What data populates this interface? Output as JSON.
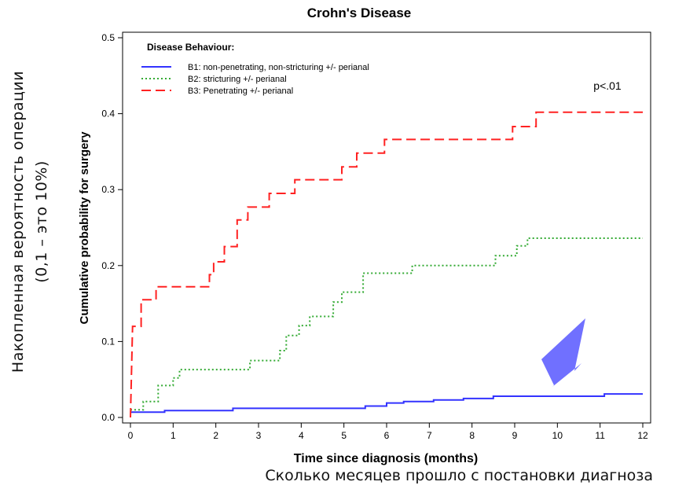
{
  "annotations": {
    "ru_ylabel_line1": "Накопленная вероятность операции",
    "ru_ylabel_line2": "(0,1 – это 10%)",
    "ru_xlabel": "Сколько месяцев прошло с постановки диагноза",
    "arrow_color": "#7070ff"
  },
  "chart_data": {
    "type": "line",
    "step": true,
    "title": "Crohn's Disease",
    "xlabel": "Time since diagnosis (months)",
    "ylabel": "Cumulative probability for surgery",
    "xlim": [
      0,
      12
    ],
    "ylim": [
      0,
      0.5
    ],
    "xticks": [
      "0",
      "1",
      "2",
      "3",
      "4",
      "5",
      "6",
      "7",
      "8",
      "9",
      "10",
      "11",
      "12"
    ],
    "yticks": [
      "0.0",
      "0.1",
      "0.2",
      "0.3",
      "0.4",
      "0.5"
    ],
    "legend_title": "Disease Behaviour:",
    "legend_position": "top-left",
    "pvalue": "p<.01",
    "grid": false,
    "series": [
      {
        "name": "B1: non-penetrating, non-stricturing +/- perianal",
        "color": "#3333ff",
        "style": "solid",
        "points": [
          [
            0,
            0.007
          ],
          [
            0.8,
            0.007
          ],
          [
            0.8,
            0.009
          ],
          [
            2.4,
            0.009
          ],
          [
            2.4,
            0.012
          ],
          [
            5.0,
            0.012
          ],
          [
            5.5,
            0.012
          ],
          [
            5.5,
            0.015
          ],
          [
            6.0,
            0.015
          ],
          [
            6.0,
            0.019
          ],
          [
            6.4,
            0.019
          ],
          [
            6.4,
            0.021
          ],
          [
            7.1,
            0.021
          ],
          [
            7.1,
            0.023
          ],
          [
            7.8,
            0.023
          ],
          [
            7.8,
            0.025
          ],
          [
            8.5,
            0.025
          ],
          [
            8.5,
            0.028
          ],
          [
            9.6,
            0.028
          ],
          [
            11.1,
            0.028
          ],
          [
            11.1,
            0.031
          ],
          [
            12,
            0.031
          ]
        ]
      },
      {
        "name": "B2: stricturing +/- perianal",
        "color": "#33aa33",
        "style": "dotted",
        "points": [
          [
            0,
            0.01
          ],
          [
            0.3,
            0.01
          ],
          [
            0.3,
            0.021
          ],
          [
            0.65,
            0.021
          ],
          [
            0.65,
            0.042
          ],
          [
            1.0,
            0.042
          ],
          [
            1.0,
            0.052
          ],
          [
            1.15,
            0.052
          ],
          [
            1.15,
            0.063
          ],
          [
            2.8,
            0.063
          ],
          [
            2.8,
            0.075
          ],
          [
            3.5,
            0.075
          ],
          [
            3.5,
            0.088
          ],
          [
            3.65,
            0.088
          ],
          [
            3.65,
            0.108
          ],
          [
            3.95,
            0.108
          ],
          [
            3.95,
            0.121
          ],
          [
            4.2,
            0.121
          ],
          [
            4.2,
            0.133
          ],
          [
            4.75,
            0.133
          ],
          [
            4.75,
            0.152
          ],
          [
            4.95,
            0.152
          ],
          [
            4.95,
            0.165
          ],
          [
            5.45,
            0.165
          ],
          [
            5.45,
            0.19
          ],
          [
            6.6,
            0.19
          ],
          [
            6.6,
            0.2
          ],
          [
            8.55,
            0.2
          ],
          [
            8.55,
            0.213
          ],
          [
            9.05,
            0.213
          ],
          [
            9.05,
            0.226
          ],
          [
            9.3,
            0.226
          ],
          [
            9.3,
            0.236
          ],
          [
            12,
            0.236
          ]
        ]
      },
      {
        "name": "B3: Penetrating +/- perianal",
        "color": "#ff2222",
        "style": "dashed",
        "points": [
          [
            0,
            0
          ],
          [
            0.05,
            0.12
          ],
          [
            0.25,
            0.12
          ],
          [
            0.25,
            0.155
          ],
          [
            0.6,
            0.155
          ],
          [
            0.6,
            0.172
          ],
          [
            1.85,
            0.172
          ],
          [
            1.85,
            0.188
          ],
          [
            1.95,
            0.188
          ],
          [
            1.95,
            0.205
          ],
          [
            2.2,
            0.205
          ],
          [
            2.2,
            0.225
          ],
          [
            2.5,
            0.225
          ],
          [
            2.5,
            0.26
          ],
          [
            2.75,
            0.26
          ],
          [
            2.75,
            0.277
          ],
          [
            3.25,
            0.277
          ],
          [
            3.25,
            0.295
          ],
          [
            3.85,
            0.295
          ],
          [
            3.85,
            0.313
          ],
          [
            4.95,
            0.313
          ],
          [
            4.95,
            0.33
          ],
          [
            5.3,
            0.33
          ],
          [
            5.3,
            0.348
          ],
          [
            5.95,
            0.348
          ],
          [
            5.95,
            0.366
          ],
          [
            8.95,
            0.366
          ],
          [
            8.95,
            0.383
          ],
          [
            9.5,
            0.383
          ],
          [
            9.5,
            0.402
          ],
          [
            12,
            0.402
          ]
        ]
      }
    ]
  }
}
